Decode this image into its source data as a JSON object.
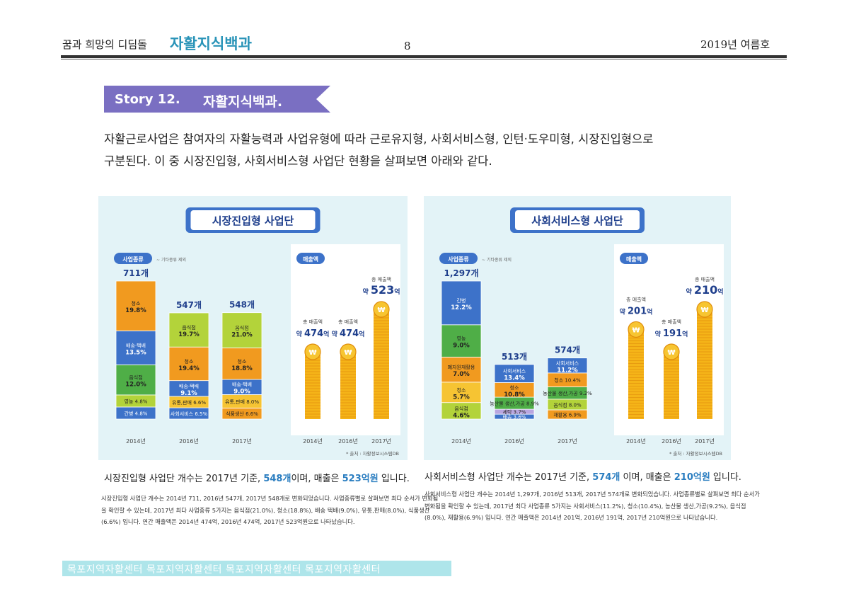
{
  "header": {
    "left": "꿈과 희망의 디딤돌",
    "brand": "자활지식백과",
    "page": "8",
    "issue": "2019년 여름호"
  },
  "story": {
    "number": "Story 12.",
    "title": "자활지식백과."
  },
  "intro": {
    "line1": "자활근로사업은 참여자의 자활능력과 사업유형에 따라 근로유지형, 사회서비스형, 인턴·도우미형, 시장진입형으로",
    "line2": "구분된다. 이 중 시장진입형, 사회서비스형 사업단 현황을 살펴보면 아래와 같다."
  },
  "chart_data": [
    {
      "type": "bar",
      "title": "시장진입형 사업단",
      "legend_label": "사업종류",
      "legend_note": "~ 기타종류 제외",
      "sales_label": "매출액",
      "source": "* 출처 : 자활정보시스템DB",
      "categories": [
        "2014년",
        "2016년",
        "2017년"
      ],
      "counts": [
        "711개",
        "547개",
        "548개"
      ],
      "count_values": [
        711,
        547,
        548
      ],
      "segments": [
        [
          {
            "label": "간병 4.8%",
            "pct": 4.8,
            "color": "#3d72c9"
          },
          {
            "label": "영농 4.8%",
            "pct": 4.8,
            "color": "#b3d33a"
          },
          {
            "label": "음식점 12.0%",
            "pct": 12.0,
            "color": "#4fae47"
          },
          {
            "label": "배송·택배 13.5%",
            "pct": 13.5,
            "color": "#3d72c9"
          },
          {
            "label": "청소 19.8%",
            "pct": 19.8,
            "color": "#f19a1f"
          }
        ],
        [
          {
            "label": "사회서비스 6.5%",
            "pct": 6.5,
            "color": "#3d72c9"
          },
          {
            "label": "유통,판매 6.6%",
            "pct": 6.6,
            "color": "#f6c433"
          },
          {
            "label": "배송·택배 9.1%",
            "pct": 9.1,
            "color": "#3d72c9"
          },
          {
            "label": "청소 19.4%",
            "pct": 19.4,
            "color": "#f19a1f"
          },
          {
            "label": "음식점 19.7%",
            "pct": 19.7,
            "color": "#b3d33a"
          }
        ],
        [
          {
            "label": "식품생산 6.6%",
            "pct": 6.6,
            "color": "#f19a1f"
          },
          {
            "label": "유통,판매 8.0%",
            "pct": 8.0,
            "color": "#f6c433"
          },
          {
            "label": "배송·택배 9.0%",
            "pct": 9.0,
            "color": "#3d72c9"
          },
          {
            "label": "청소 18.8%",
            "pct": 18.8,
            "color": "#f19a1f"
          },
          {
            "label": "음식점 21.0%",
            "pct": 21.0,
            "color": "#b3d33a"
          }
        ]
      ],
      "sales": [
        {
          "year": "2014년",
          "prefix": "총 매출액",
          "value_label": "약 474억",
          "value": 474
        },
        {
          "year": "2016년",
          "prefix": "총 매출액",
          "value_label": "약 474억",
          "value": 474
        },
        {
          "year": "2017년",
          "prefix": "총 매출액",
          "value_label": "약 523억",
          "value": 523
        }
      ]
    },
    {
      "type": "bar",
      "title": "사회서비스형 사업단",
      "legend_label": "사업종류",
      "legend_note": "~ 기타종류 제외",
      "sales_label": "매출액",
      "source": "* 출처 : 자활정보시스템DB",
      "categories": [
        "2014년",
        "2016년",
        "2017년"
      ],
      "counts": [
        "1,297개",
        "513개",
        "574개"
      ],
      "count_values": [
        1297,
        513,
        574
      ],
      "segments": [
        [
          {
            "label": "음식점 4.6%",
            "pct": 4.6,
            "color": "#b3d33a"
          },
          {
            "label": "청소 5.7%",
            "pct": 5.7,
            "color": "#f6c433"
          },
          {
            "label": "폐자원재활용 7.0%",
            "pct": 7.0,
            "color": "#f19a1f"
          },
          {
            "label": "영농 9.0%",
            "pct": 9.0,
            "color": "#4fae47"
          },
          {
            "label": "간병 12.2%",
            "pct": 12.2,
            "color": "#3d72c9"
          }
        ],
        [
          {
            "label": "배송 3.6%",
            "pct": 3.6,
            "color": "#3d72c9"
          },
          {
            "label": "세탁 3.7%",
            "pct": 3.7,
            "color": "#b9a6e0"
          },
          {
            "label": "농산물 생산,가공 8.9%",
            "pct": 8.9,
            "color": "#4fae47"
          },
          {
            "label": "청소 10.8%",
            "pct": 10.8,
            "color": "#f19a1f"
          },
          {
            "label": "사회서비스 13.4%",
            "pct": 13.4,
            "color": "#3d72c9"
          }
        ],
        [
          {
            "label": "재활용 6.9%",
            "pct": 6.9,
            "color": "#f19a1f"
          },
          {
            "label": "음식점 8.0%",
            "pct": 8.0,
            "color": "#b3d33a"
          },
          {
            "label": "농산물 생산,가공 9.2%",
            "pct": 9.2,
            "color": "#4fae47"
          },
          {
            "label": "청소 10.4%",
            "pct": 10.4,
            "color": "#f19a1f"
          },
          {
            "label": "사회서비스 11.2%",
            "pct": 11.2,
            "color": "#3d72c9"
          }
        ]
      ],
      "sales": [
        {
          "year": "2014년",
          "prefix": "총 매출액",
          "value_label": "약 201억",
          "value": 201
        },
        {
          "year": "2016년",
          "prefix": "총 매출액",
          "value_label": "약 191억",
          "value": 191
        },
        {
          "year": "2017년",
          "prefix": "총 매출액",
          "value_label": "약 210억",
          "value": 210
        }
      ]
    }
  ],
  "captions": {
    "left": {
      "pre": "시장진입형 사업단 개수는 2017년 기준, ",
      "count": "548개",
      "mid": "이며, 매출은 ",
      "sales": "523억원",
      "post": " 입니다."
    },
    "right": {
      "pre": "사회서비스형 사업단 개수는 2017년 기준, ",
      "count": "574개",
      "mid": " 이며, 매출은 ",
      "sales": "210억원",
      "post": " 입니다."
    }
  },
  "details": {
    "left": [
      "시장진입형 사업단 개수는 2014년 711, 2016년 547개, 2017년 548개로 변화되었습니다. 사업종류별로 살펴보면 최다 순서가 변화됨",
      "을 확인할 수 있는데, 2017년 최다 사업종류 5가지는 음식점(21.0%), 청소(18.8%), 배송 택배(9.0%), 유통,판매(8.0%), 식품생산",
      "(6.6%) 입니다. 연간 매출액은 2014년 474억, 2016년 474억, 2017년 523억원으로 나타났습니다."
    ],
    "right": [
      "사회서비스형 사업단 개수는 2014년 1,297개, 2016년 513개, 2017년 574개로 변화되었습니다. 사업종류별로 살펴보면 최다 순서가",
      "변화됨을 확인할 수 있는데, 2017년 최다 사업종류 5가지는 사회서비스(11.2%), 청소(10.4%), 농산물 생산,가공(9.2%), 음식점",
      "(8.0%), 재활용(6.9%) 입니다. 연간 매출액은 2014년 201억, 2016년 191억, 2017년 210억원으로 나타났습니다."
    ]
  },
  "footer": {
    "text": "목포지역자활센터 목포지역자활센터 목포지역자활센터 목포지역자활센터"
  },
  "colors": {
    "brand": "#2a94b8",
    "banner": "#7a6fc2",
    "panel": "#e3f3f7",
    "coin": "#f5b418",
    "accent": "#2a7dc0"
  }
}
